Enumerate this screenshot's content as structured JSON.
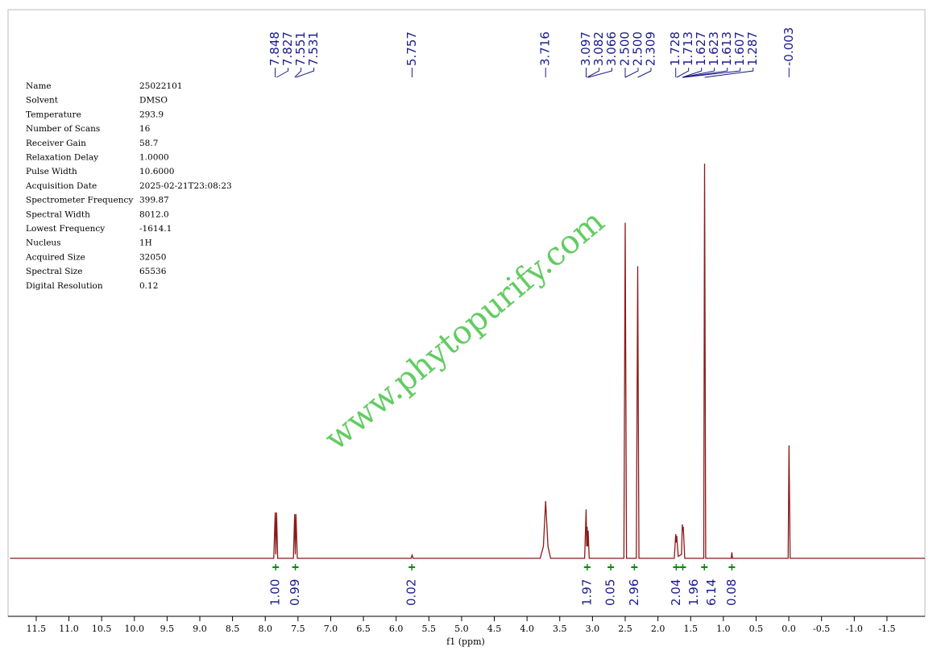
{
  "chart_data": {
    "type": "nmr",
    "xlabel": "f1 (ppm)",
    "xlim": [
      11.93,
      -2.08
    ],
    "ylim": [
      -14.7,
      139
    ],
    "color": "#8b1a1a",
    "xticks": [
      11.5,
      {
        "value": 11,
        "label": "11.0"
      },
      10.5,
      {
        "value": 10,
        "label": "10.0"
      },
      9.5,
      {
        "value": 9,
        "label": "9.0"
      },
      8.5,
      {
        "value": 8,
        "label": "8.0"
      },
      7.5,
      {
        "value": 7,
        "label": "7.0"
      },
      6.5,
      {
        "value": 6,
        "label": "6.0"
      },
      5.5,
      {
        "value": 5,
        "label": "5.0"
      },
      4.5,
      {
        "value": 4,
        "label": "4.0"
      },
      3.5,
      {
        "value": 3,
        "label": "3.0"
      },
      2.5,
      {
        "value": 2,
        "label": "2.0"
      },
      1.5,
      {
        "value": 1,
        "label": "1.0"
      },
      0.5,
      {
        "value": 0,
        "label": "0.0"
      },
      -0.5,
      {
        "value": -1,
        "label": "-1.0"
      },
      -1.5
    ],
    "x": [
      11.9,
      7.87,
      7.848,
      7.838,
      7.827,
      7.81,
      7.57,
      7.551,
      7.541,
      7.531,
      7.51,
      5.77,
      5.757,
      5.74,
      3.8,
      3.75,
      3.716,
      3.68,
      3.64,
      3.12,
      3.097,
      3.089,
      3.082,
      3.074,
      3.066,
      3.05,
      2.52,
      2.5,
      2.48,
      2.33,
      2.309,
      2.29,
      1.75,
      1.728,
      1.72,
      1.713,
      1.69,
      1.64,
      1.627,
      1.62,
      1.613,
      1.607,
      1.59,
      1.3,
      1.287,
      1.27,
      0.88,
      0.87,
      0.86,
      0.01,
      -0.003,
      -0.02,
      -2.08
    ],
    "values": [
      0,
      0,
      11.6,
      1,
      11.6,
      0,
      0,
      11.2,
      1,
      11.2,
      0,
      0,
      0.8,
      0,
      0,
      3,
      14.5,
      3,
      0,
      0,
      12.4,
      3,
      8,
      3,
      7,
      0,
      0,
      85,
      0,
      0,
      74,
      0,
      0,
      6.1,
      4,
      5.7,
      0.5,
      1,
      8.6,
      7,
      8,
      6,
      0,
      0,
      100,
      0,
      0,
      1.5,
      0,
      0,
      28.6,
      0,
      0
    ],
    "peak_labels": [
      7.848,
      7.827,
      7.551,
      7.531,
      5.757,
      3.716,
      3.097,
      3.082,
      3.066,
      {
        "value": 2.5,
        "label": "2.500"
      },
      {
        "value": 2.5,
        "label": "2.500"
      },
      2.309,
      1.728,
      1.713,
      1.627,
      1.623,
      1.613,
      1.607,
      1.287,
      -0.003
    ],
    "integrals": [
      {
        "x": 7.84,
        "value": 1,
        "label": "1.00"
      },
      {
        "x": 7.54,
        "value": 0.99
      },
      {
        "x": 5.76,
        "value": 0.02
      },
      {
        "x": 3.08,
        "value": 1.97
      },
      {
        "x": 2.72,
        "value": 0.05
      },
      {
        "x": 2.36,
        "value": 2.96
      },
      {
        "x": 1.72,
        "value": 2.04
      },
      {
        "x": 1.62,
        "value": 1.96
      },
      {
        "x": 1.29,
        "value": 6.14
      },
      {
        "x": 0.87,
        "value": 0.08
      }
    ],
    "watermark": "www.phytopurify.com"
  },
  "parameters": [
    [
      "Name",
      "25022101"
    ],
    [
      "Solvent",
      "DMSO"
    ],
    [
      "Temperature",
      "293.9"
    ],
    [
      "Number of Scans",
      "16"
    ],
    [
      "Receiver Gain",
      "58.7"
    ],
    [
      "Relaxation Delay",
      "1.0000"
    ],
    [
      "Pulse Width",
      "10.6000"
    ],
    [
      "Acquisition Date",
      "2025-02-21T23:08:23"
    ],
    [
      "Spectrometer Frequency",
      "399.87"
    ],
    [
      "Spectral Width",
      "8012.0"
    ],
    [
      "Lowest Frequency",
      "-1614.1"
    ],
    [
      "Nucleus",
      "1H"
    ],
    [
      "Acquired Size",
      "32050"
    ],
    [
      "Spectral Size",
      "65536"
    ],
    [
      "Digital Resolution",
      "0.12"
    ]
  ]
}
